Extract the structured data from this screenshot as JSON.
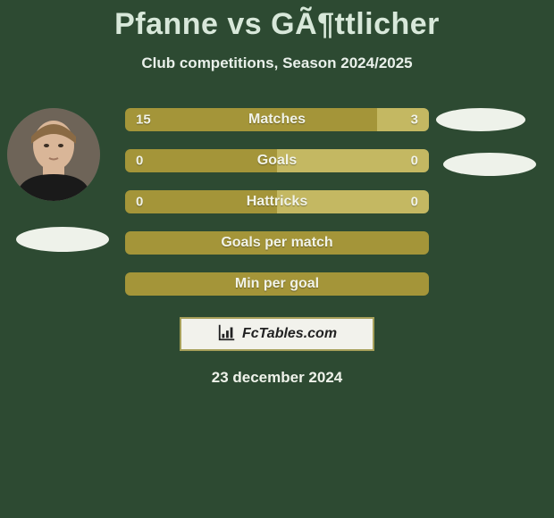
{
  "title": "Pfanne vs GÃ¶ttlicher",
  "subtitle": "Club competitions, Season 2024/2025",
  "date": "23 december 2024",
  "brand": "FcTables.com",
  "colors": {
    "background": "#2d4a32",
    "bar_olive": "#a49539",
    "bar_olive_light": "#c4b862",
    "bar_border": "#a7a05a",
    "ellipse": "#eef2ea"
  },
  "stats": [
    {
      "label": "Matches",
      "left_val": "15",
      "right_val": "3",
      "left_pct": 83,
      "right_pct": 17,
      "left_color": "#a49539",
      "right_color": "#c4b862"
    },
    {
      "label": "Goals",
      "left_val": "0",
      "right_val": "0",
      "left_pct": 50,
      "right_pct": 50,
      "left_color": "#a49539",
      "right_color": "#c4b862"
    },
    {
      "label": "Hattricks",
      "left_val": "0",
      "right_val": "0",
      "left_pct": 50,
      "right_pct": 50,
      "left_color": "#a49539",
      "right_color": "#c4b862"
    },
    {
      "label": "Goals per match",
      "left_val": "",
      "right_val": "",
      "left_pct": 100,
      "right_pct": 0,
      "left_color": "#a49539",
      "right_color": "#c4b862"
    },
    {
      "label": "Min per goal",
      "left_val": "",
      "right_val": "",
      "left_pct": 100,
      "right_pct": 0,
      "left_color": "#a49539",
      "right_color": "#c4b862"
    }
  ]
}
